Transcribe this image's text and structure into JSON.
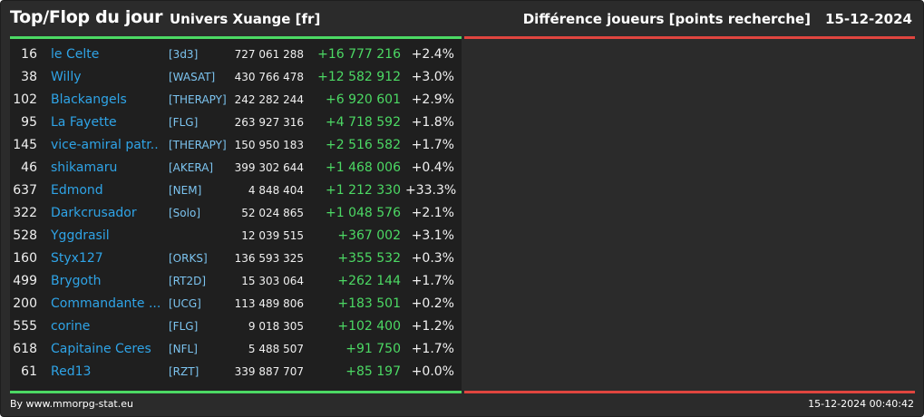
{
  "header": {
    "title": "Top/Flop du jour",
    "universe": "Univers Xuange [fr]",
    "category": "Différence joueurs [points recherche]",
    "date": "15-12-2024"
  },
  "rows": [
    {
      "rank": "16",
      "name": "le Celte",
      "alliance": "[3d3]",
      "points": "727 061 288",
      "diff": "+16 777 216",
      "pct": "+2.4%"
    },
    {
      "rank": "38",
      "name": "Willy",
      "alliance": "[WASAT]",
      "points": "430 766 478",
      "diff": "+12 582 912",
      "pct": "+3.0%"
    },
    {
      "rank": "102",
      "name": "Blackangels",
      "alliance": "[THERAPY]",
      "points": "242 282 244",
      "diff": "+6 920 601",
      "pct": "+2.9%"
    },
    {
      "rank": "95",
      "name": "La Fayette",
      "alliance": "[FLG]",
      "points": "263 927 316",
      "diff": "+4 718 592",
      "pct": "+1.8%"
    },
    {
      "rank": "145",
      "name": "vice-amiral patr...",
      "alliance": "[THERAPY]",
      "points": "150 950 183",
      "diff": "+2 516 582",
      "pct": "+1.7%"
    },
    {
      "rank": "46",
      "name": "shikamaru",
      "alliance": "[AKERA]",
      "points": "399 302 644",
      "diff": "+1 468 006",
      "pct": "+0.4%"
    },
    {
      "rank": "637",
      "name": "Edmond",
      "alliance": "[NEM]",
      "points": "4 848 404",
      "diff": "+1 212 330",
      "pct": "+33.3%"
    },
    {
      "rank": "322",
      "name": "Darkcrusador",
      "alliance": "[Solo]",
      "points": "52 024 865",
      "diff": "+1 048 576",
      "pct": "+2.1%"
    },
    {
      "rank": "528",
      "name": "Yggdrasil",
      "alliance": "",
      "points": "12 039 515",
      "diff": "+367 002",
      "pct": "+3.1%"
    },
    {
      "rank": "160",
      "name": "Styx127",
      "alliance": "[ORKS]",
      "points": "136 593 325",
      "diff": "+355 532",
      "pct": "+0.3%"
    },
    {
      "rank": "499",
      "name": "Brygoth",
      "alliance": "[RT2D]",
      "points": "15 303 064",
      "diff": "+262 144",
      "pct": "+1.7%"
    },
    {
      "rank": "200",
      "name": "Commandante ...",
      "alliance": "[UCG]",
      "points": "113 489 806",
      "diff": "+183 501",
      "pct": "+0.2%"
    },
    {
      "rank": "555",
      "name": "corine",
      "alliance": "[FLG]",
      "points": "9 018 305",
      "diff": "+102 400",
      "pct": "+1.2%"
    },
    {
      "rank": "618",
      "name": "Capitaine Ceres",
      "alliance": "[NFL]",
      "points": "5 488 507",
      "diff": "+91 750",
      "pct": "+1.7%"
    },
    {
      "rank": "61",
      "name": "Red13",
      "alliance": "[RZT]",
      "points": "339 887 707",
      "diff": "+85 197",
      "pct": "+0.0%"
    }
  ],
  "footer": {
    "credit": "By www.mmorpg-stat.eu",
    "timestamp": "15-12-2024 00:40:42"
  },
  "colors": {
    "top": "#4cd964",
    "flop": "#e0453f",
    "link": "#2fa4e7"
  }
}
